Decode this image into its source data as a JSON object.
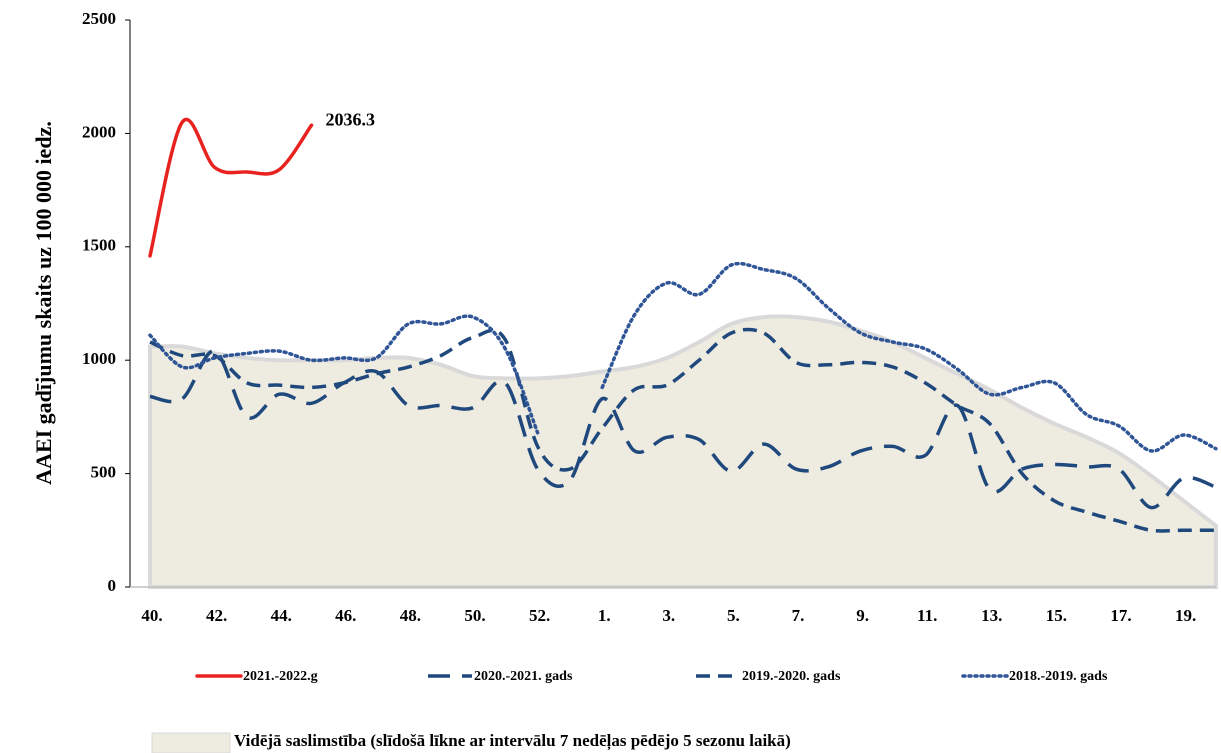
{
  "chart_data": {
    "type": "line",
    "y_label": "AAEI gadījumu skaits uz 100 000 iedz.",
    "categories": [
      "40.",
      null,
      "42.",
      null,
      "44.",
      null,
      "46.",
      null,
      "48.",
      null,
      "50.",
      null,
      "52.",
      null,
      "1.",
      null,
      "3.",
      null,
      "5.",
      null,
      "7.",
      null,
      "9.",
      null,
      "11.",
      null,
      "13.",
      null,
      "15.",
      null,
      "17.",
      null,
      "19.",
      null
    ],
    "ylim": [
      0,
      2500
    ],
    "yticks": [
      0,
      500,
      1000,
      1500,
      2000,
      2500
    ],
    "area": {
      "name": "Vidējā saslimstība (slīdošā līkne ar intervālu 7 nedēļas pēdējo 5 sezonu laikā)",
      "color": "#eeebe1",
      "edge_color": "#d9d9d9",
      "values": [
        1060,
        1060,
        1030,
        1010,
        1000,
        1000,
        1000,
        1010,
        1010,
        980,
        930,
        920,
        920,
        930,
        950,
        970,
        1010,
        1080,
        1160,
        1190,
        1190,
        1170,
        1130,
        1080,
        1010,
        940,
        870,
        790,
        720,
        660,
        590,
        490,
        380,
        270
      ]
    },
    "series": [
      {
        "name": "2021.-2022.g",
        "color": "#e8231f",
        "style": "solid",
        "values": [
          1460,
          2050,
          1850,
          1830,
          1840,
          2036.3,
          null,
          null,
          null,
          null,
          null,
          null,
          null,
          null,
          null,
          null,
          null,
          null,
          null,
          null,
          null,
          null,
          null,
          null,
          null,
          null,
          null,
          null,
          null,
          null,
          null,
          null,
          null,
          null
        ],
        "value_labels": [
          null,
          null,
          null,
          null,
          null,
          "2036.3",
          null,
          null,
          null,
          null,
          null,
          null,
          null,
          null,
          null,
          null,
          null,
          null,
          null,
          null,
          null,
          null,
          null,
          null,
          null,
          null,
          null,
          null,
          null,
          null,
          null,
          null,
          null,
          null
        ]
      },
      {
        "name": "2020.-2021. gads",
        "color": "#1f497d",
        "style": "longdash",
        "values": [
          840,
          830,
          1040,
          750,
          850,
          810,
          900,
          950,
          800,
          800,
          790,
          900,
          520,
          470,
          830,
          600,
          660,
          650,
          510,
          630,
          520,
          530,
          600,
          620,
          580,
          800,
          430,
          520,
          540,
          530,
          520,
          350,
          480,
          440
        ]
      },
      {
        "name": "2019.-2020. gads",
        "color": "#1f497d",
        "style": "dash",
        "values": [
          1080,
          1020,
          1020,
          900,
          890,
          880,
          900,
          940,
          970,
          1020,
          1100,
          1090,
          620,
          520,
          700,
          870,
          890,
          1000,
          1120,
          1120,
          990,
          980,
          990,
          970,
          900,
          800,
          720,
          500,
          380,
          330,
          290,
          250,
          250,
          250
        ]
      },
      {
        "name": "2018.-2019. gads",
        "color": "#2f5597",
        "style": "dot",
        "values": [
          1110,
          970,
          1010,
          1030,
          1040,
          1000,
          1010,
          1010,
          1160,
          1160,
          1190,
          1050,
          680,
          null,
          880,
          1200,
          1340,
          1290,
          1420,
          1400,
          1360,
          1230,
          1120,
          1080,
          1050,
          960,
          850,
          880,
          900,
          760,
          710,
          600,
          670,
          610
        ]
      }
    ]
  }
}
